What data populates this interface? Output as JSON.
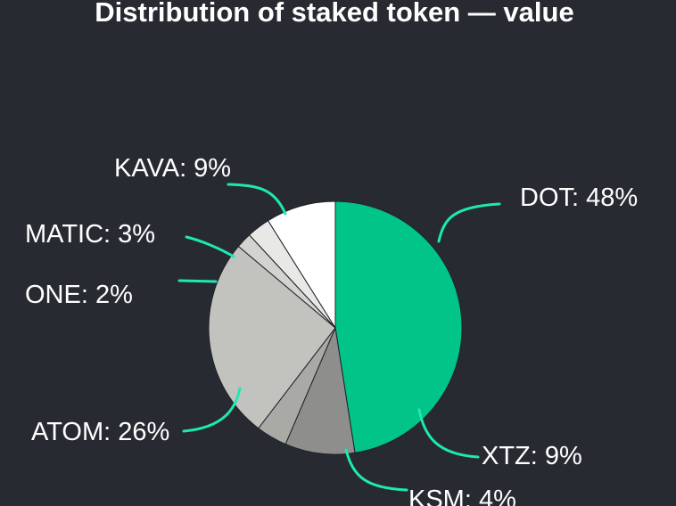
{
  "chart_data": {
    "type": "pie",
    "title": "Distribution of staked token — value",
    "slices": [
      {
        "label": "DOT",
        "percent": 48,
        "display": "DOT: 48%",
        "color": "#00c488"
      },
      {
        "label": "XTZ",
        "percent": 9,
        "display": "XTZ: 9%",
        "color": "#8e8e8c"
      },
      {
        "label": "KSM",
        "percent": 4,
        "display": "KSM: 4%",
        "color": "#a9a9a6"
      },
      {
        "label": "ATOM",
        "percent": 26,
        "display": "ATOM: 26%",
        "color": "#c2c2bf"
      },
      {
        "label": "ONE",
        "percent": 2,
        "display": "ONE: 2%",
        "color": "#d3d3d0"
      },
      {
        "label": "MATIC",
        "percent": 3,
        "display": "MATIC: 3%",
        "color": "#e8e8e6"
      },
      {
        "label": "KAVA",
        "percent": 9,
        "display": "KAVA: 9%",
        "color": "#ffffff"
      }
    ],
    "leader_color": "#1de9b0",
    "background": "#272b31"
  }
}
